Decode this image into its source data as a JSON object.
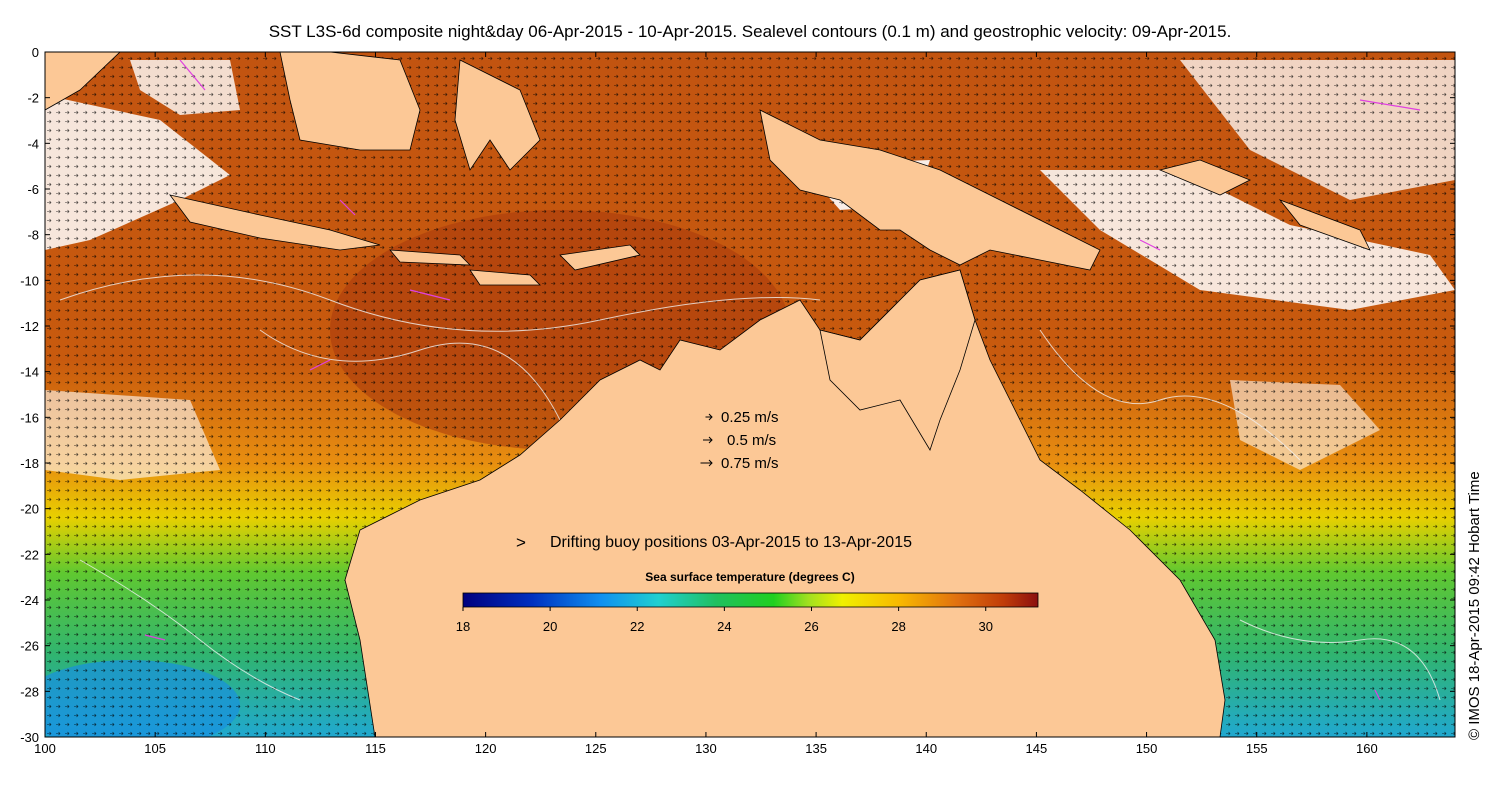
{
  "title": "SST L3S-6d composite night&day 06-Apr-2015 - 10-Apr-2015. Sealevel contours (0.1 m) and geostrophic velocity: 09-Apr-2015.",
  "axes": {
    "x_ticks": [
      100,
      105,
      110,
      115,
      120,
      125,
      130,
      135,
      140,
      145,
      150,
      155,
      160
    ],
    "y_ticks": [
      0,
      -2,
      -4,
      -6,
      -8,
      -10,
      -12,
      -14,
      -16,
      -18,
      -20,
      -22,
      -24,
      -26,
      -28,
      -30
    ],
    "x_range": [
      100,
      164
    ],
    "y_range": [
      -30,
      0
    ]
  },
  "velocity_legend": [
    {
      "label": "0.25 m/s",
      "speed": 0.25
    },
    {
      "label": "0.5 m/s",
      "speed": 0.5
    },
    {
      "label": "0.75 m/s",
      "speed": 0.75
    }
  ],
  "buoy_legend": {
    "symbol": ">",
    "label": "Drifting buoy positions 03-Apr-2015 to 13-Apr-2015",
    "color": "#e040e0"
  },
  "colorbar": {
    "title": "Sea surface temperature (degrees C)",
    "ticks": [
      18,
      20,
      22,
      24,
      26,
      28,
      30
    ],
    "range": [
      18,
      31.2
    ]
  },
  "credit": "© IMOS 18-Apr-2015 09:42 Hobart Time",
  "colors": {
    "land": "#fcc896",
    "ocean_warm": "#c8560c",
    "ocean_mid": "#e48a10",
    "ocean_cool": "#d4d400",
    "ocean_green": "#33bb33",
    "ocean_cold": "#2ab8d8",
    "no_data": "#ffffff",
    "buoy": "#e040e0"
  }
}
